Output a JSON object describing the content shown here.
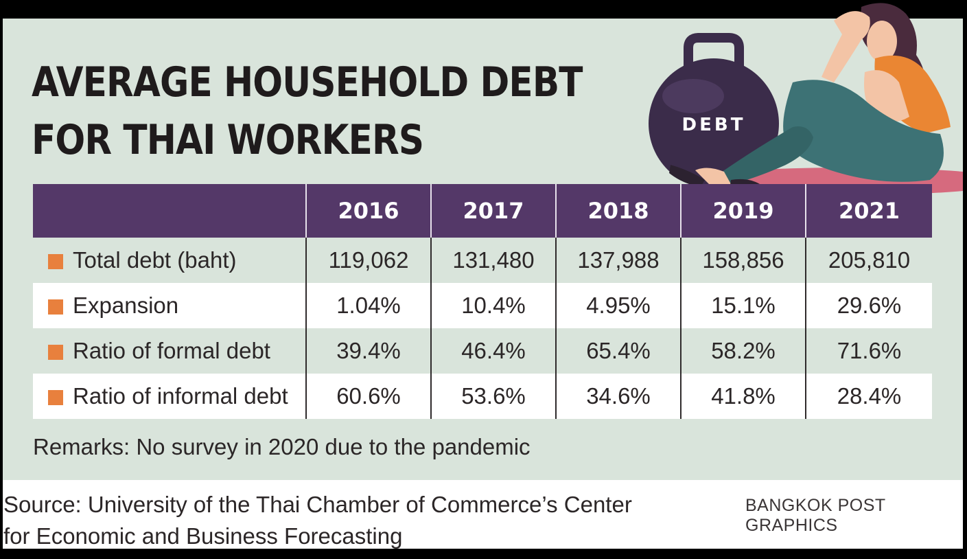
{
  "title_line1": "AVERAGE HOUSEHOLD DEBT",
  "title_line2": "FOR THAI WORKERS",
  "illustration": {
    "weight_label": "DEBT",
    "icon": "woman-sitting-with-debt-weight"
  },
  "colors": {
    "header_bg": "#543868",
    "card_bg": "#d9e4db",
    "bullet": "#e8803d"
  },
  "chart_data": {
    "type": "table",
    "columns": [
      "2016",
      "2017",
      "2018",
      "2019",
      "2021"
    ],
    "rows": [
      {
        "label": "Total debt (baht)",
        "values": [
          "119,062",
          "131,480",
          "137,988",
          "158,856",
          "205,810"
        ]
      },
      {
        "label": "Expansion",
        "values": [
          "1.04%",
          "10.4%",
          "4.95%",
          "15.1%",
          "29.6%"
        ]
      },
      {
        "label": "Ratio of formal debt",
        "values": [
          "39.4%",
          "46.4%",
          "65.4%",
          "58.2%",
          "71.6%"
        ]
      },
      {
        "label": "Ratio of informal debt",
        "values": [
          "60.6%",
          "53.6%",
          "34.6%",
          "41.8%",
          "28.4%"
        ]
      }
    ]
  },
  "remarks": "Remarks: No survey in 2020 due to the pandemic",
  "source": "Source: University of the Thai Chamber of Commerce’s Center for Economic and Business Forecasting",
  "credit": "BANGKOK POST GRAPHICS"
}
